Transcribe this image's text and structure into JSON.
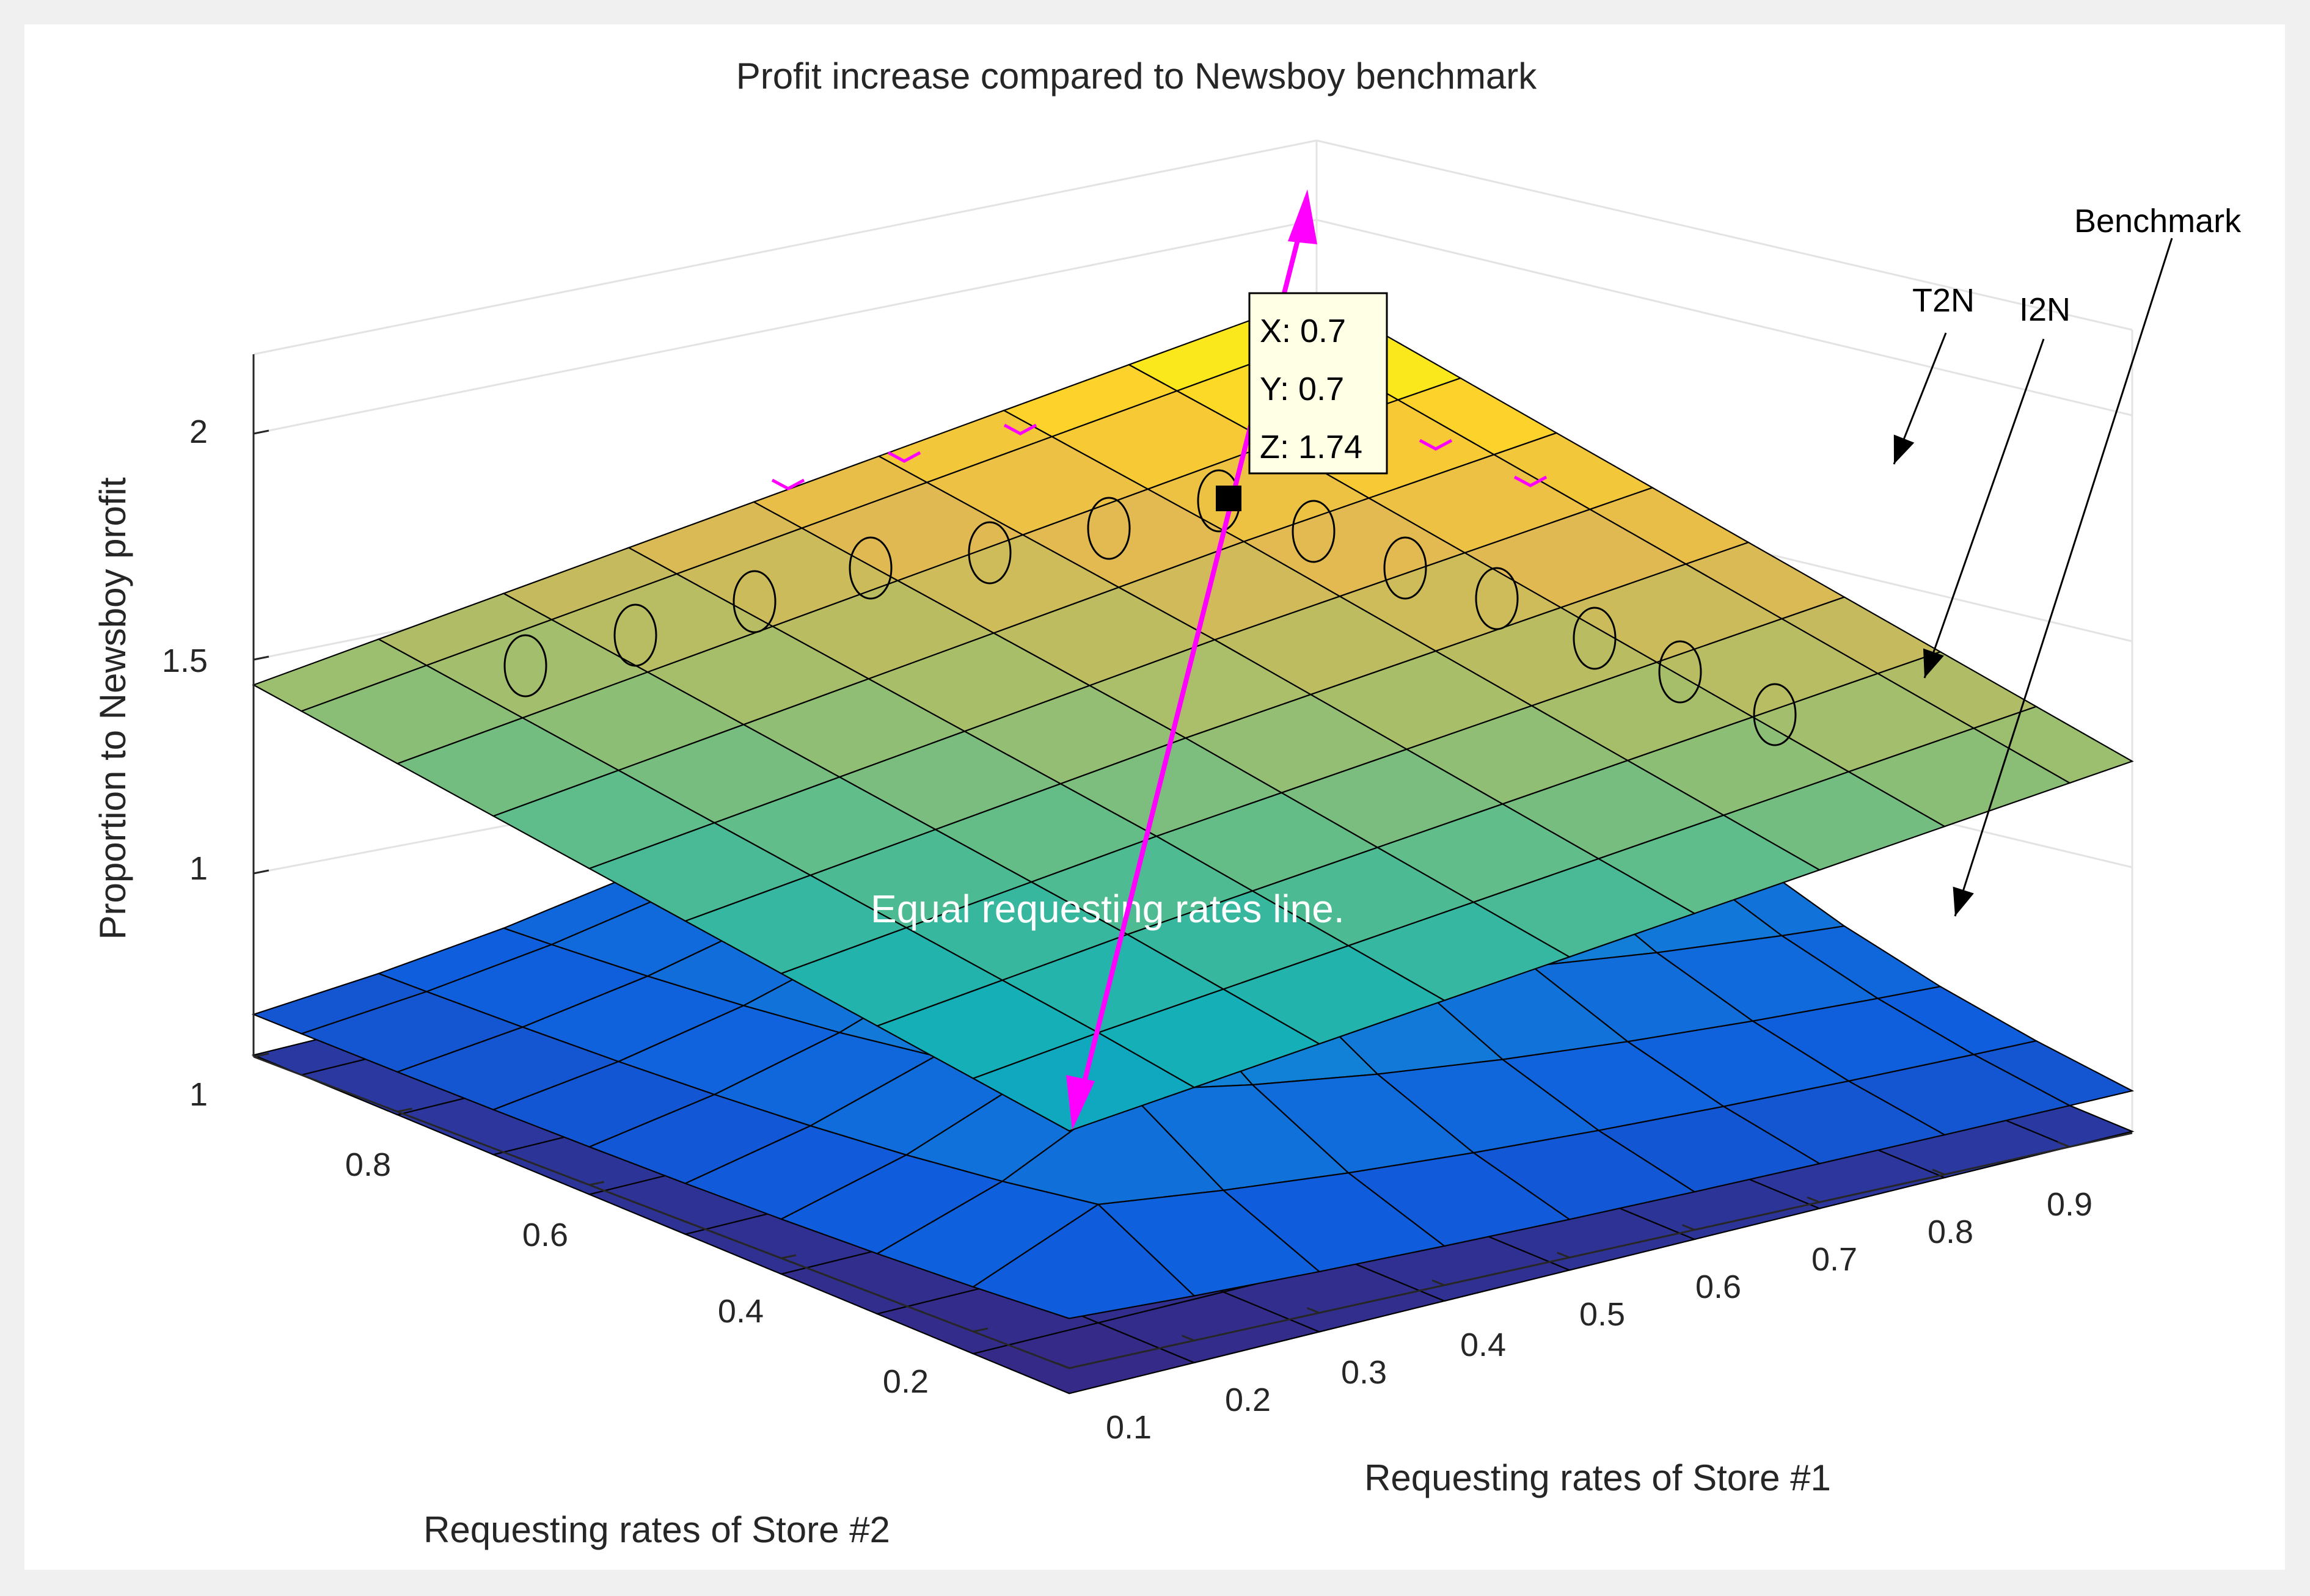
{
  "colors": {
    "figure_background": "#f0f0f0",
    "axes_background": "#ffffff",
    "arrow": "#ff00ff",
    "markers": "#ff00ff"
  },
  "chart_data": {
    "type": "surface",
    "title": "Profit increase compared to Newsboy benchmark",
    "xlabel": "Requesting rates of Store #1",
    "ylabel": "Requesting rates of Store #2",
    "zlabel": "Proportion to Newsboy profit",
    "x_ticks": [
      "0.1",
      "0.2",
      "0.3",
      "0.4",
      "0.5",
      "0.6",
      "0.7",
      "0.8",
      "0.9"
    ],
    "y_ticks": [
      "0.2",
      "0.4",
      "0.6",
      "0.8"
    ],
    "z_ticks": [
      "1",
      "1",
      "1.5",
      "2"
    ],
    "x": [
      0.1,
      0.2,
      0.3,
      0.4,
      0.5,
      0.6,
      0.7,
      0.8,
      0.9,
      0.95
    ],
    "y": [
      0.1,
      0.2,
      0.3,
      0.4,
      0.5,
      0.6,
      0.7,
      0.8,
      0.9,
      0.95
    ],
    "series": [
      {
        "name": "T2N",
        "description": "top surface, approx. 2.0 at far corner, 1.74 at x=y=0.7"
      },
      {
        "name": "I2N",
        "description": "middle surface, ridge along equal requesting rates line"
      },
      {
        "name": "Benchmark",
        "description": "low flat surface"
      }
    ],
    "legend": [
      "T2N",
      "I2N",
      "Benchmark"
    ],
    "datatip": {
      "x_label": "X: 0.7",
      "y_label": "Y: 0.7",
      "z_label": "Z: 1.74",
      "x": 0.7,
      "y": 0.7,
      "z": 1.74
    },
    "overlay_text": "Equal requesting rates line.",
    "grid": true
  }
}
